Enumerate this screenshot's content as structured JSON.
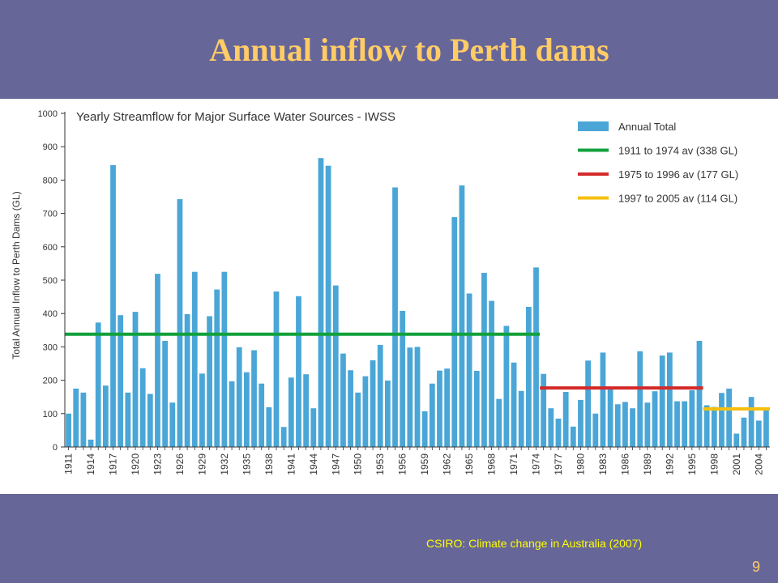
{
  "slide": {
    "title": "Annual inflow to Perth dams",
    "source": "CSIRO: Climate change in Australia (2007)",
    "page_number": "9"
  },
  "colors": {
    "bar": "#4aa6d6",
    "avg_1911_1974": "#12a03c",
    "avg_1975_1996": "#d42a2a",
    "avg_1997_2005": "#f5bf0f",
    "axis": "#333333"
  },
  "chart_data": {
    "type": "bar",
    "title": "Yearly Streamflow for Major Surface Water Sources - IWSS",
    "xlabel": "",
    "ylabel": "Total Annual Inflow to Perth Dams (GL)",
    "ylim": [
      0,
      1000
    ],
    "yticks": [
      0,
      100,
      200,
      300,
      400,
      500,
      600,
      700,
      800,
      900,
      1000
    ],
    "grid": false,
    "legend_position": "top-right",
    "x": [
      1911,
      1912,
      1913,
      1914,
      1915,
      1916,
      1917,
      1918,
      1919,
      1920,
      1921,
      1922,
      1923,
      1924,
      1925,
      1926,
      1927,
      1928,
      1929,
      1930,
      1931,
      1932,
      1933,
      1934,
      1935,
      1936,
      1937,
      1938,
      1939,
      1940,
      1941,
      1942,
      1943,
      1944,
      1945,
      1946,
      1947,
      1948,
      1949,
      1950,
      1951,
      1952,
      1953,
      1954,
      1955,
      1956,
      1957,
      1958,
      1959,
      1960,
      1961,
      1962,
      1963,
      1964,
      1965,
      1966,
      1967,
      1968,
      1969,
      1970,
      1971,
      1972,
      1973,
      1974,
      1975,
      1976,
      1977,
      1978,
      1979,
      1980,
      1981,
      1982,
      1983,
      1984,
      1985,
      1986,
      1987,
      1988,
      1989,
      1990,
      1991,
      1992,
      1993,
      1994,
      1995,
      1996,
      1997,
      1998,
      1999,
      2000,
      2001,
      2002,
      2003,
      2004,
      2005
    ],
    "xtick_labels": [
      "1911",
      "1914",
      "1917",
      "1920",
      "1923",
      "1926",
      "1929",
      "1932",
      "1935",
      "1938",
      "1941",
      "1944",
      "1947",
      "1950",
      "1953",
      "1956",
      "1959",
      "1962",
      "1965",
      "1968",
      "1971",
      "1974",
      "1977",
      "1980",
      "1983",
      "1986",
      "1989",
      "1992",
      "1995",
      "1998",
      "2001",
      "2004"
    ],
    "series": [
      {
        "name": "Annual Total",
        "values": [
          100,
          175,
          163,
          22,
          373,
          184,
          845,
          395,
          163,
          405,
          236,
          159,
          519,
          318,
          133,
          743,
          398,
          525,
          220,
          392,
          472,
          525,
          197,
          299,
          224,
          290,
          190,
          119,
          466,
          60,
          208,
          452,
          218,
          116,
          866,
          843,
          484,
          280,
          230,
          163,
          212,
          260,
          306,
          199,
          778,
          408,
          298,
          300,
          107,
          190,
          229,
          235,
          689,
          784,
          460,
          228,
          522,
          438,
          144,
          363,
          253,
          168,
          420,
          538,
          219,
          116,
          85,
          165,
          61,
          141,
          259,
          100,
          283,
          180,
          128,
          135,
          116,
          287,
          133,
          167,
          274,
          283,
          137,
          137,
          170,
          318,
          125,
          120,
          162,
          175,
          40,
          88,
          150,
          79,
          113
        ]
      }
    ],
    "averages": [
      {
        "name": "1911 to 1974 av (338 GL)",
        "value": 338,
        "from": 1911,
        "to": 1974
      },
      {
        "name": "1975 to 1996 av (177 GL)",
        "value": 177,
        "from": 1975,
        "to": 1996
      },
      {
        "name": "1997 to 2005 av (114 GL)",
        "value": 114,
        "from": 1997,
        "to": 2005
      }
    ]
  }
}
